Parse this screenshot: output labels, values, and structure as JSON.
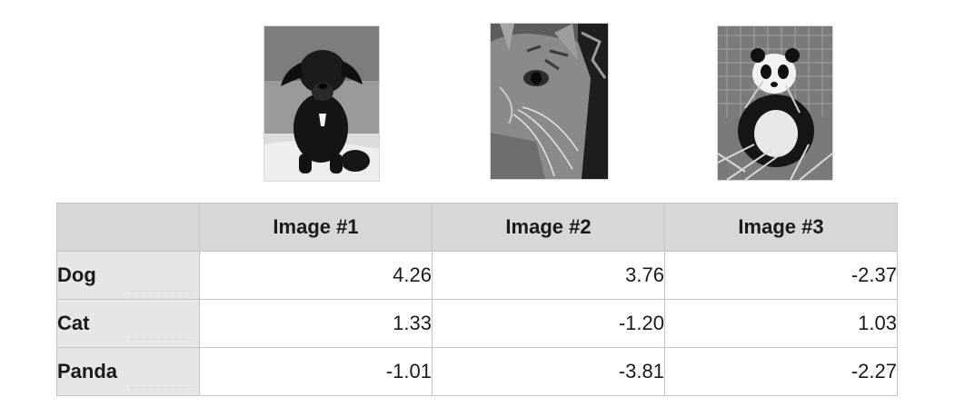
{
  "images": [
    {
      "subject_icon": "dog-photo"
    },
    {
      "subject_icon": "cat-photo"
    },
    {
      "subject_icon": "panda-photo"
    }
  ],
  "table": {
    "columns": [
      "Image #1",
      "Image #2",
      "Image #3"
    ],
    "rows": [
      {
        "label": "Dog",
        "values": [
          "4.26",
          "3.76",
          "-2.37"
        ]
      },
      {
        "label": "Cat",
        "values": [
          "1.33",
          "-1.20",
          "1.03"
        ]
      },
      {
        "label": "Panda",
        "values": [
          "-1.01",
          "-3.81",
          "-2.27"
        ]
      }
    ]
  },
  "colors": {
    "header_bg": "#d7d7d7",
    "rowhead_bg": "#e6e6e6",
    "border": "#c4c4c4"
  }
}
